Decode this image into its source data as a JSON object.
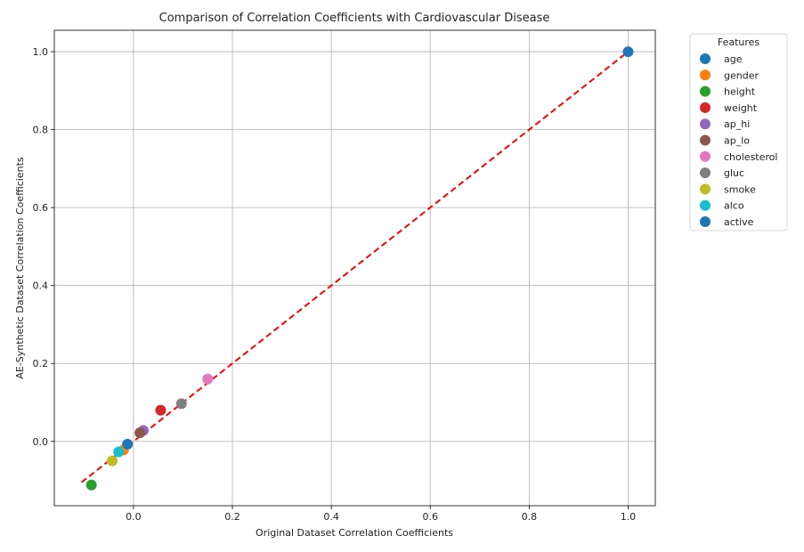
{
  "chart_data": {
    "type": "scatter",
    "title": "Comparison of Correlation Coefficients with Cardiovascular Disease",
    "xlabel": "Original Dataset Correlation Coefficients",
    "ylabel": "AE-Synthetic Dataset Correlation Coefficients",
    "xlim": [
      -0.16,
      1.055
    ],
    "ylim": [
      -0.165,
      1.055
    ],
    "xticks": [
      0.0,
      0.2,
      0.4,
      0.6,
      0.8,
      1.0
    ],
    "xtick_labels": [
      "0.0",
      "0.2",
      "0.4",
      "0.6",
      "0.8",
      "1.0"
    ],
    "yticks": [
      0.0,
      0.2,
      0.4,
      0.6,
      0.8,
      1.0
    ],
    "ytick_labels": [
      "0.0",
      "0.2",
      "0.4",
      "0.6",
      "0.8",
      "1.0"
    ],
    "grid": true,
    "legend_title": "Features",
    "legend_placement": "outside-top-right",
    "series": [
      {
        "name": "age",
        "color": "#1f77b4",
        "x": 1.0,
        "y": 1.0
      },
      {
        "name": "gender",
        "color": "#ff7f0e",
        "x": -0.02,
        "y": -0.022
      },
      {
        "name": "height",
        "color": "#2ca02c",
        "x": -0.085,
        "y": -0.112
      },
      {
        "name": "weight",
        "color": "#d62728",
        "x": 0.055,
        "y": 0.08
      },
      {
        "name": "ap_hi",
        "color": "#9467bd",
        "x": 0.02,
        "y": 0.028
      },
      {
        "name": "ap_lo",
        "color": "#8c564b",
        "x": 0.013,
        "y": 0.022
      },
      {
        "name": "cholesterol",
        "color": "#e377c2",
        "x": 0.15,
        "y": 0.16
      },
      {
        "name": "gluc",
        "color": "#7f7f7f",
        "x": 0.097,
        "y": 0.097
      },
      {
        "name": "smoke",
        "color": "#bcbd22",
        "x": -0.043,
        "y": -0.05
      },
      {
        "name": "alco",
        "color": "#17becf",
        "x": -0.03,
        "y": -0.027
      },
      {
        "name": "active",
        "color": "#1f77b4",
        "x": -0.012,
        "y": -0.007
      }
    ],
    "reference_line": {
      "color": "#ff0000",
      "style": "dashed",
      "x": [
        -0.105,
        1.0
      ],
      "y": [
        -0.105,
        1.0
      ]
    }
  }
}
